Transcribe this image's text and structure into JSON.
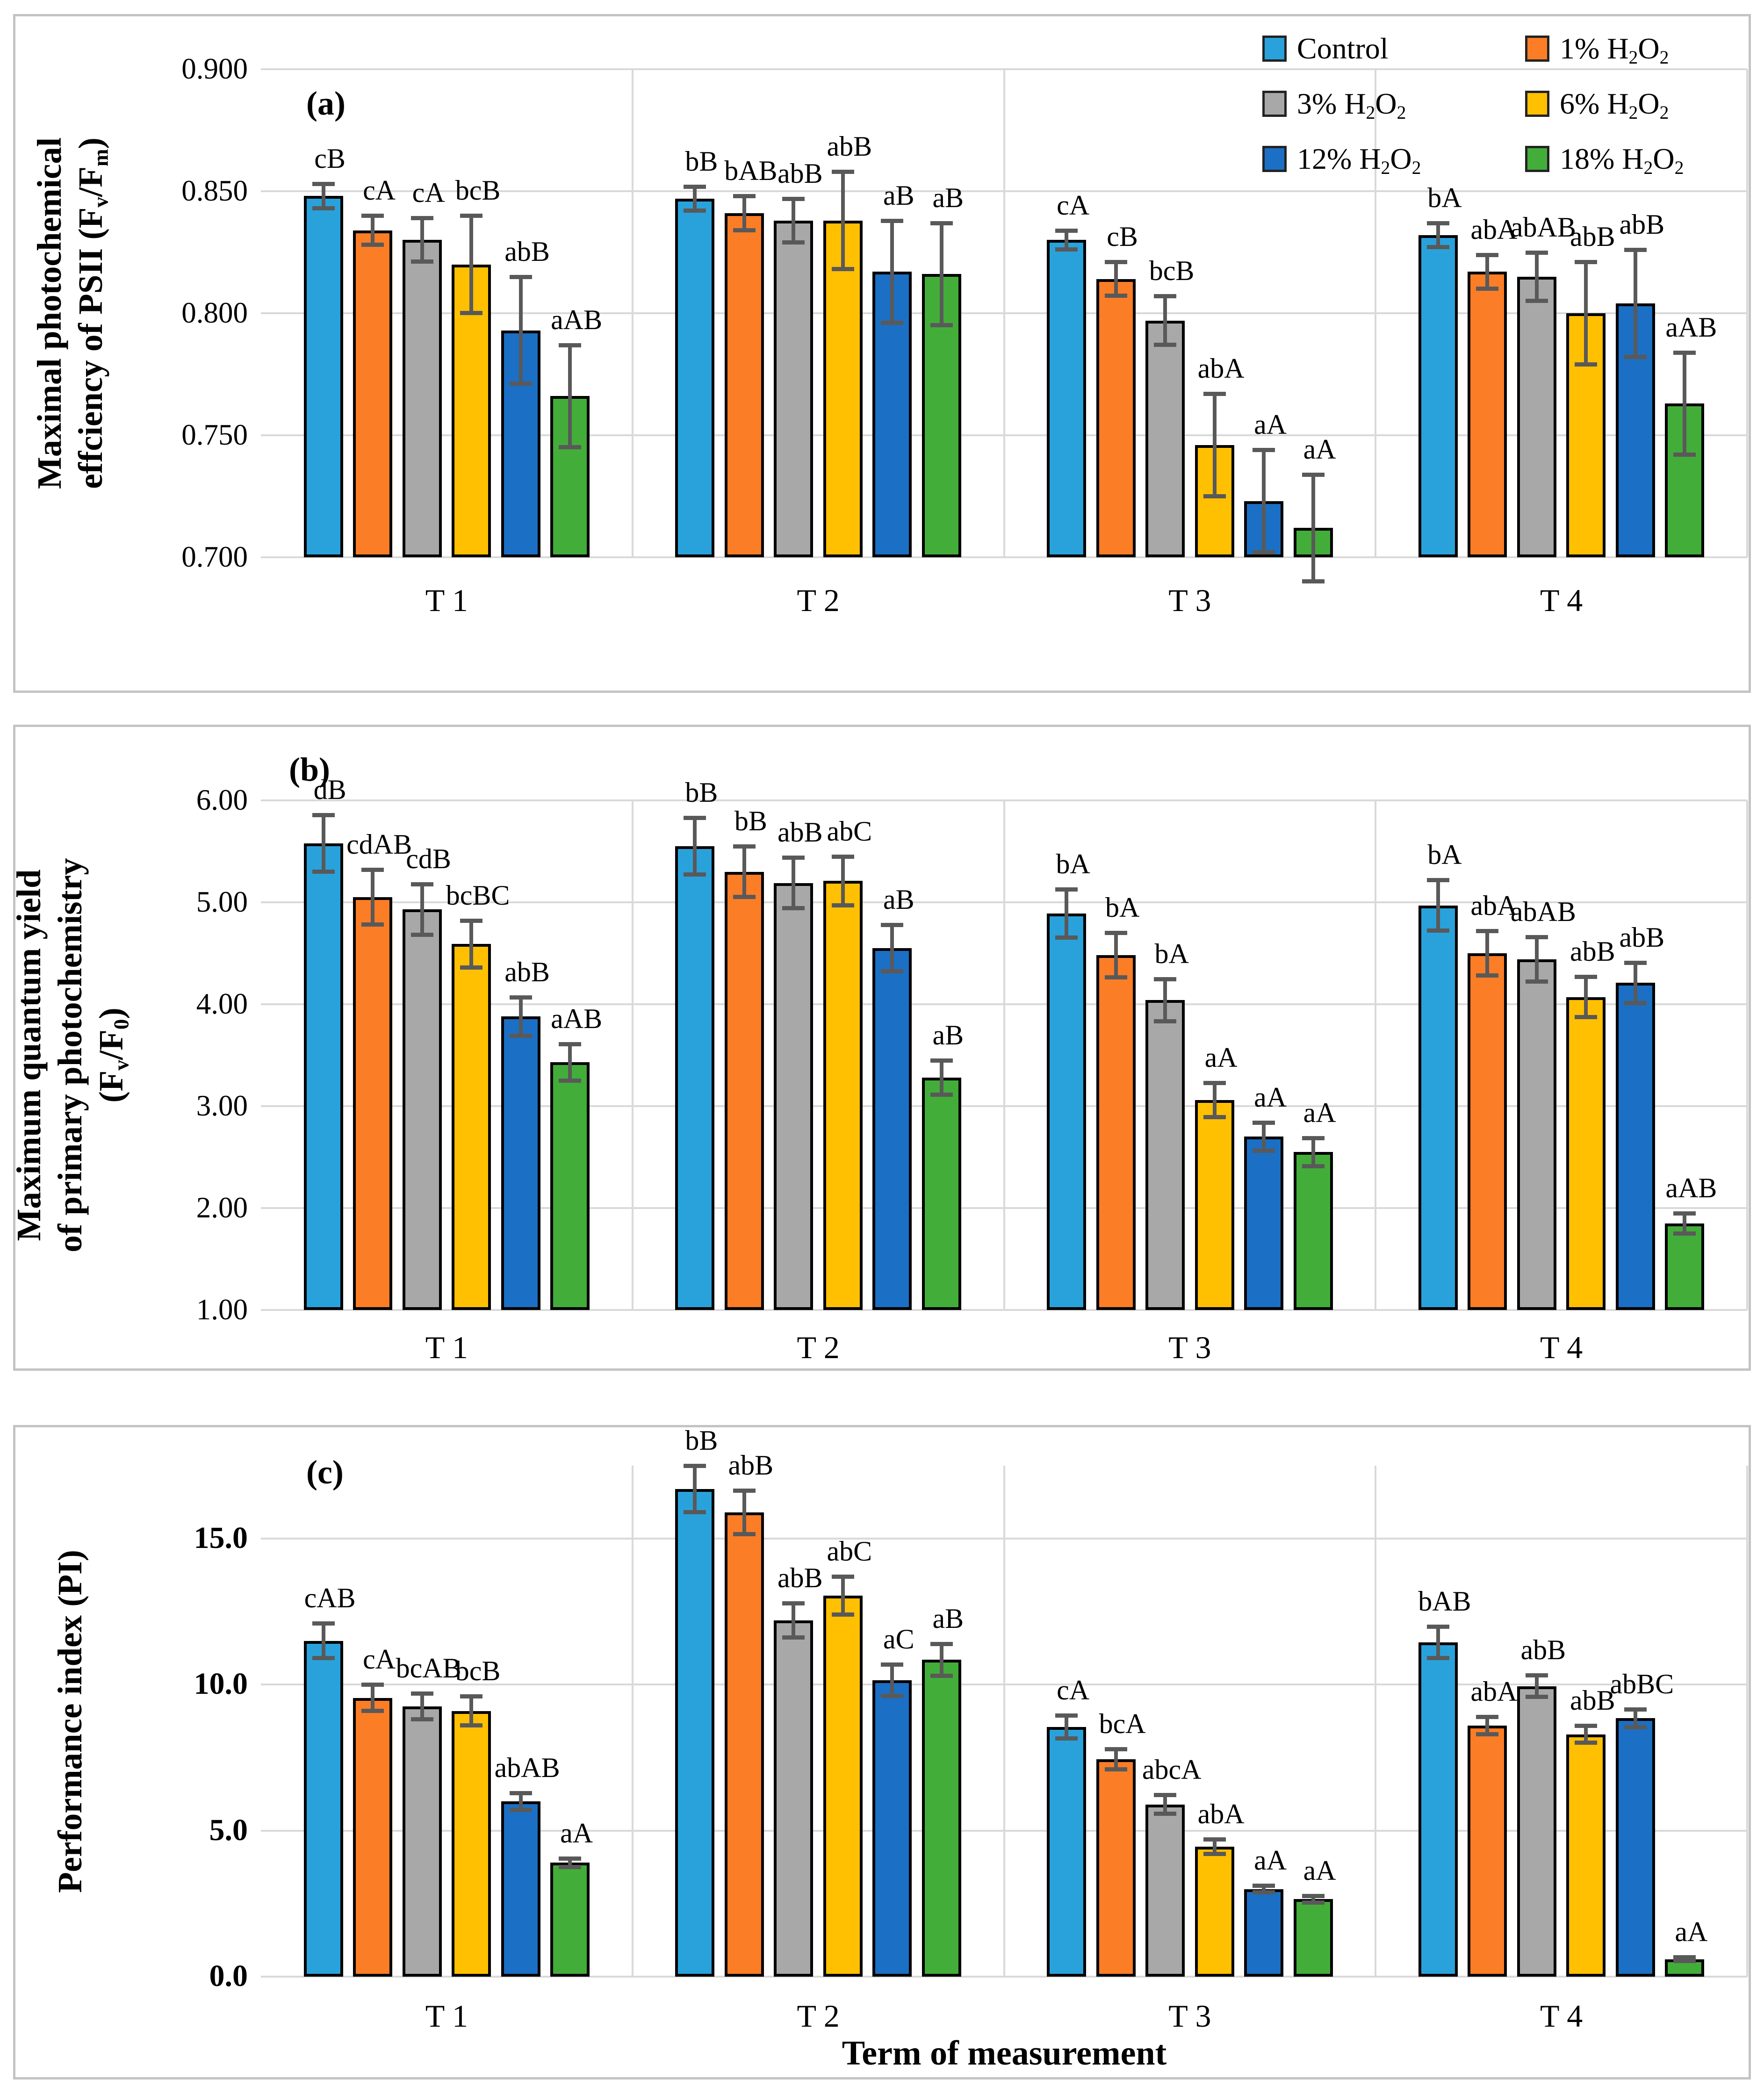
{
  "figure": {
    "background": "#ffffff",
    "frame_color": "#c3c3c3",
    "gridline_color": "#d9d9d9",
    "error_bar_color": "#595959",
    "bar_outline_color": "#000000"
  },
  "legend": {
    "position": "top-right of panel (a)",
    "items": [
      {
        "label": "Control",
        "color": "#29A2DC",
        "label_rich": [
          {
            "t": "Control"
          }
        ]
      },
      {
        "label": "1% H2O2",
        "color": "#FB7D26",
        "label_rich": [
          {
            "t": "1% H"
          },
          {
            "t": "2",
            "sub": true
          },
          {
            "t": "O"
          },
          {
            "t": "2",
            "sub": true
          }
        ]
      },
      {
        "label": "3% H2O2",
        "color": "#A8A8A8",
        "label_rich": [
          {
            "t": "3% H"
          },
          {
            "t": "2",
            "sub": true
          },
          {
            "t": "O"
          },
          {
            "t": "2",
            "sub": true
          }
        ]
      },
      {
        "label": "6% H2O2",
        "color": "#FFC001",
        "label_rich": [
          {
            "t": "6% H"
          },
          {
            "t": "2",
            "sub": true
          },
          {
            "t": "O"
          },
          {
            "t": "2",
            "sub": true
          }
        ]
      },
      {
        "label": "12% H2O2",
        "color": "#1B6FC4",
        "label_rich": [
          {
            "t": "12% H"
          },
          {
            "t": "2",
            "sub": true
          },
          {
            "t": "O"
          },
          {
            "t": "2",
            "sub": true
          }
        ]
      },
      {
        "label": "18% H2O2",
        "color": "#43AD3A",
        "label_rich": [
          {
            "t": "18% H"
          },
          {
            "t": "2",
            "sub": true
          },
          {
            "t": "O"
          },
          {
            "t": "2",
            "sub": true
          }
        ]
      }
    ]
  },
  "chart_data": [
    {
      "id": "a",
      "type": "bar",
      "panel_letter": "(a)",
      "ylabel": "Maximal photochemical effciency of PSII (Fv/Fm)",
      "ylabel_lines": [
        [
          {
            "t": "Maximal photochemical"
          }
        ],
        [
          {
            "t": "effciency of PSII (F"
          },
          {
            "t": "v",
            "sub": true
          },
          {
            "t": "/F"
          },
          {
            "t": "m",
            "sub": true
          },
          {
            "t": ")"
          }
        ]
      ],
      "xlabel": "",
      "ylim": [
        0.7,
        0.9
      ],
      "yticks": [
        {
          "value": 0.9,
          "label": "0.900"
        },
        {
          "value": 0.85,
          "label": "0.850"
        },
        {
          "value": 0.8,
          "label": "0.800"
        },
        {
          "value": 0.75,
          "label": "0.750"
        },
        {
          "value": 0.7,
          "label": "0.700"
        }
      ],
      "grid": true,
      "categories": [
        "T 1",
        "T 2",
        "T 3",
        "T 4"
      ],
      "series": [
        {
          "name": "Control",
          "color": "#29A2DC",
          "values": [
            0.848,
            0.847,
            0.83,
            0.832
          ],
          "errors": [
            0.005,
            0.005,
            0.004,
            0.005
          ],
          "labels": [
            "cB",
            "bB",
            "cA",
            "bA"
          ]
        },
        {
          "name": "1% H2O2",
          "color": "#FB7D26",
          "values": [
            0.834,
            0.841,
            0.814,
            0.817
          ],
          "errors": [
            0.006,
            0.007,
            0.007,
            0.007
          ],
          "labels": [
            "cA",
            "bAB",
            "cB",
            "abA"
          ]
        },
        {
          "name": "3% H2O2",
          "color": "#A8A8A8",
          "values": [
            0.83,
            0.838,
            0.797,
            0.815
          ],
          "errors": [
            0.009,
            0.009,
            0.01,
            0.01
          ],
          "labels": [
            "cA",
            "abB",
            "bcB",
            "abAB"
          ]
        },
        {
          "name": "6% H2O2",
          "color": "#FFC001",
          "values": [
            0.82,
            0.838,
            0.746,
            0.8
          ],
          "errors": [
            0.02,
            0.02,
            0.021,
            0.021
          ],
          "labels": [
            "bcB",
            "abB",
            "abA",
            "abB"
          ]
        },
        {
          "name": "12% H2O2",
          "color": "#1B6FC4",
          "values": [
            0.793,
            0.817,
            0.723,
            0.804
          ],
          "errors": [
            0.022,
            0.021,
            0.021,
            0.022
          ],
          "labels": [
            "abB",
            "aB",
            "aA",
            "abB"
          ]
        },
        {
          "name": "18% H2O2",
          "color": "#43AD3A",
          "values": [
            0.766,
            0.816,
            0.712,
            0.763
          ],
          "errors": [
            0.021,
            0.021,
            0.022,
            0.021
          ],
          "labels": [
            "aAB",
            "aB",
            "aA",
            "aAB"
          ]
        }
      ]
    },
    {
      "id": "b",
      "type": "bar",
      "panel_letter": "(b)",
      "ylabel": "Maximum quantum yield of primary photochemistry (Fv/F0)",
      "ylabel_lines": [
        [
          {
            "t": "Maximum quantum yield"
          }
        ],
        [
          {
            "t": "of primary photochemistry"
          }
        ],
        [
          {
            "t": "(F"
          },
          {
            "t": "v",
            "sub": true
          },
          {
            "t": "/F"
          },
          {
            "t": "0",
            "sub": true
          },
          {
            "t": ")"
          }
        ]
      ],
      "xlabel": "",
      "ylim": [
        1.0,
        6.0
      ],
      "yticks": [
        {
          "value": 6.0,
          "label": "6.00"
        },
        {
          "value": 5.0,
          "label": "5.00"
        },
        {
          "value": 4.0,
          "label": "4.00"
        },
        {
          "value": 3.0,
          "label": "3.00"
        },
        {
          "value": 2.0,
          "label": "2.00"
        },
        {
          "value": 1.0,
          "label": "1.00"
        }
      ],
      "grid": true,
      "categories": [
        "T 1",
        "T 2",
        "T 3",
        "T 4"
      ],
      "series": [
        {
          "name": "Control",
          "color": "#29A2DC",
          "values": [
            5.58,
            5.55,
            4.89,
            4.97
          ],
          "errors": [
            0.28,
            0.28,
            0.24,
            0.25
          ],
          "labels": [
            "dB",
            "bB",
            "bA",
            "bA"
          ]
        },
        {
          "name": "1% H2O2",
          "color": "#FB7D26",
          "values": [
            5.05,
            5.3,
            4.48,
            4.5
          ],
          "errors": [
            0.27,
            0.25,
            0.22,
            0.22
          ],
          "labels": [
            "cdAB",
            "bB",
            "bA",
            "abA"
          ]
        },
        {
          "name": "3% H2O2",
          "color": "#A8A8A8",
          "values": [
            4.93,
            5.19,
            4.04,
            4.44
          ],
          "errors": [
            0.25,
            0.25,
            0.21,
            0.22
          ],
          "labels": [
            "cdB",
            "abB",
            "bA",
            "abAB"
          ]
        },
        {
          "name": "6% H2O2",
          "color": "#FFC001",
          "values": [
            4.59,
            5.21,
            3.06,
            4.07
          ],
          "errors": [
            0.23,
            0.24,
            0.17,
            0.2
          ],
          "labels": [
            "bcBC",
            "abC",
            "aA",
            "abB"
          ]
        },
        {
          "name": "12% H2O2",
          "color": "#1B6FC4",
          "values": [
            3.88,
            4.55,
            2.7,
            4.21
          ],
          "errors": [
            0.19,
            0.23,
            0.14,
            0.2
          ],
          "labels": [
            "abB",
            "aB",
            "aA",
            "abB"
          ]
        },
        {
          "name": "18% H2O2",
          "color": "#43AD3A",
          "values": [
            3.43,
            3.28,
            2.55,
            1.85
          ],
          "errors": [
            0.18,
            0.17,
            0.14,
            0.1
          ],
          "labels": [
            "aAB",
            "aB",
            "aA",
            "aAB"
          ]
        }
      ]
    },
    {
      "id": "c",
      "type": "bar",
      "panel_letter": "(c)",
      "ylabel": "Performance index (PI)",
      "ylabel_lines": [
        [
          {
            "t": "Performance index (PI)"
          }
        ]
      ],
      "xlabel": "Term of measurement",
      "ylim": [
        0.0,
        17.5
      ],
      "yticks": [
        {
          "value": 15.0,
          "label": "15.0"
        },
        {
          "value": 10.0,
          "label": "10.0"
        },
        {
          "value": 5.0,
          "label": "5.0"
        },
        {
          "value": 0.0,
          "label": "0.0"
        }
      ],
      "grid": true,
      "categories": [
        "T 1",
        "T 2",
        "T 3",
        "T 4"
      ],
      "series": [
        {
          "name": "Control",
          "color": "#29A2DC",
          "values": [
            11.5,
            16.7,
            8.55,
            11.45
          ],
          "errors": [
            0.6,
            0.8,
            0.4,
            0.55
          ],
          "labels": [
            "cAB",
            "bB",
            "cA",
            "bAB"
          ]
        },
        {
          "name": "1% H2O2",
          "color": "#FB7D26",
          "values": [
            9.55,
            15.9,
            7.45,
            8.6
          ],
          "errors": [
            0.45,
            0.75,
            0.35,
            0.3
          ],
          "labels": [
            "cA",
            "abB",
            "bcA",
            "abA"
          ]
        },
        {
          "name": "3% H2O2",
          "color": "#A8A8A8",
          "values": [
            9.25,
            12.2,
            5.9,
            9.95
          ],
          "errors": [
            0.45,
            0.6,
            0.33,
            0.37
          ],
          "labels": [
            "bcAB",
            "abB",
            "abcA",
            "abB"
          ]
        },
        {
          "name": "6% H2O2",
          "color": "#FFC001",
          "values": [
            9.1,
            13.05,
            4.45,
            8.3
          ],
          "errors": [
            0.5,
            0.65,
            0.25,
            0.29
          ],
          "labels": [
            "bcB",
            "abC",
            "abA",
            "abB"
          ]
        },
        {
          "name": "12% H2O2",
          "color": "#1B6FC4",
          "values": [
            6.0,
            10.15,
            3.0,
            8.85
          ],
          "errors": [
            0.3,
            0.55,
            0.12,
            0.31
          ],
          "labels": [
            "abAB",
            "aC",
            "aA",
            "abBC"
          ]
        },
        {
          "name": "18% H2O2",
          "color": "#43AD3A",
          "values": [
            3.9,
            10.85,
            2.65,
            0.6
          ],
          "errors": [
            0.15,
            0.55,
            0.12,
            0.07
          ],
          "labels": [
            "aA",
            "aB",
            "aA",
            "aA"
          ]
        }
      ]
    }
  ]
}
